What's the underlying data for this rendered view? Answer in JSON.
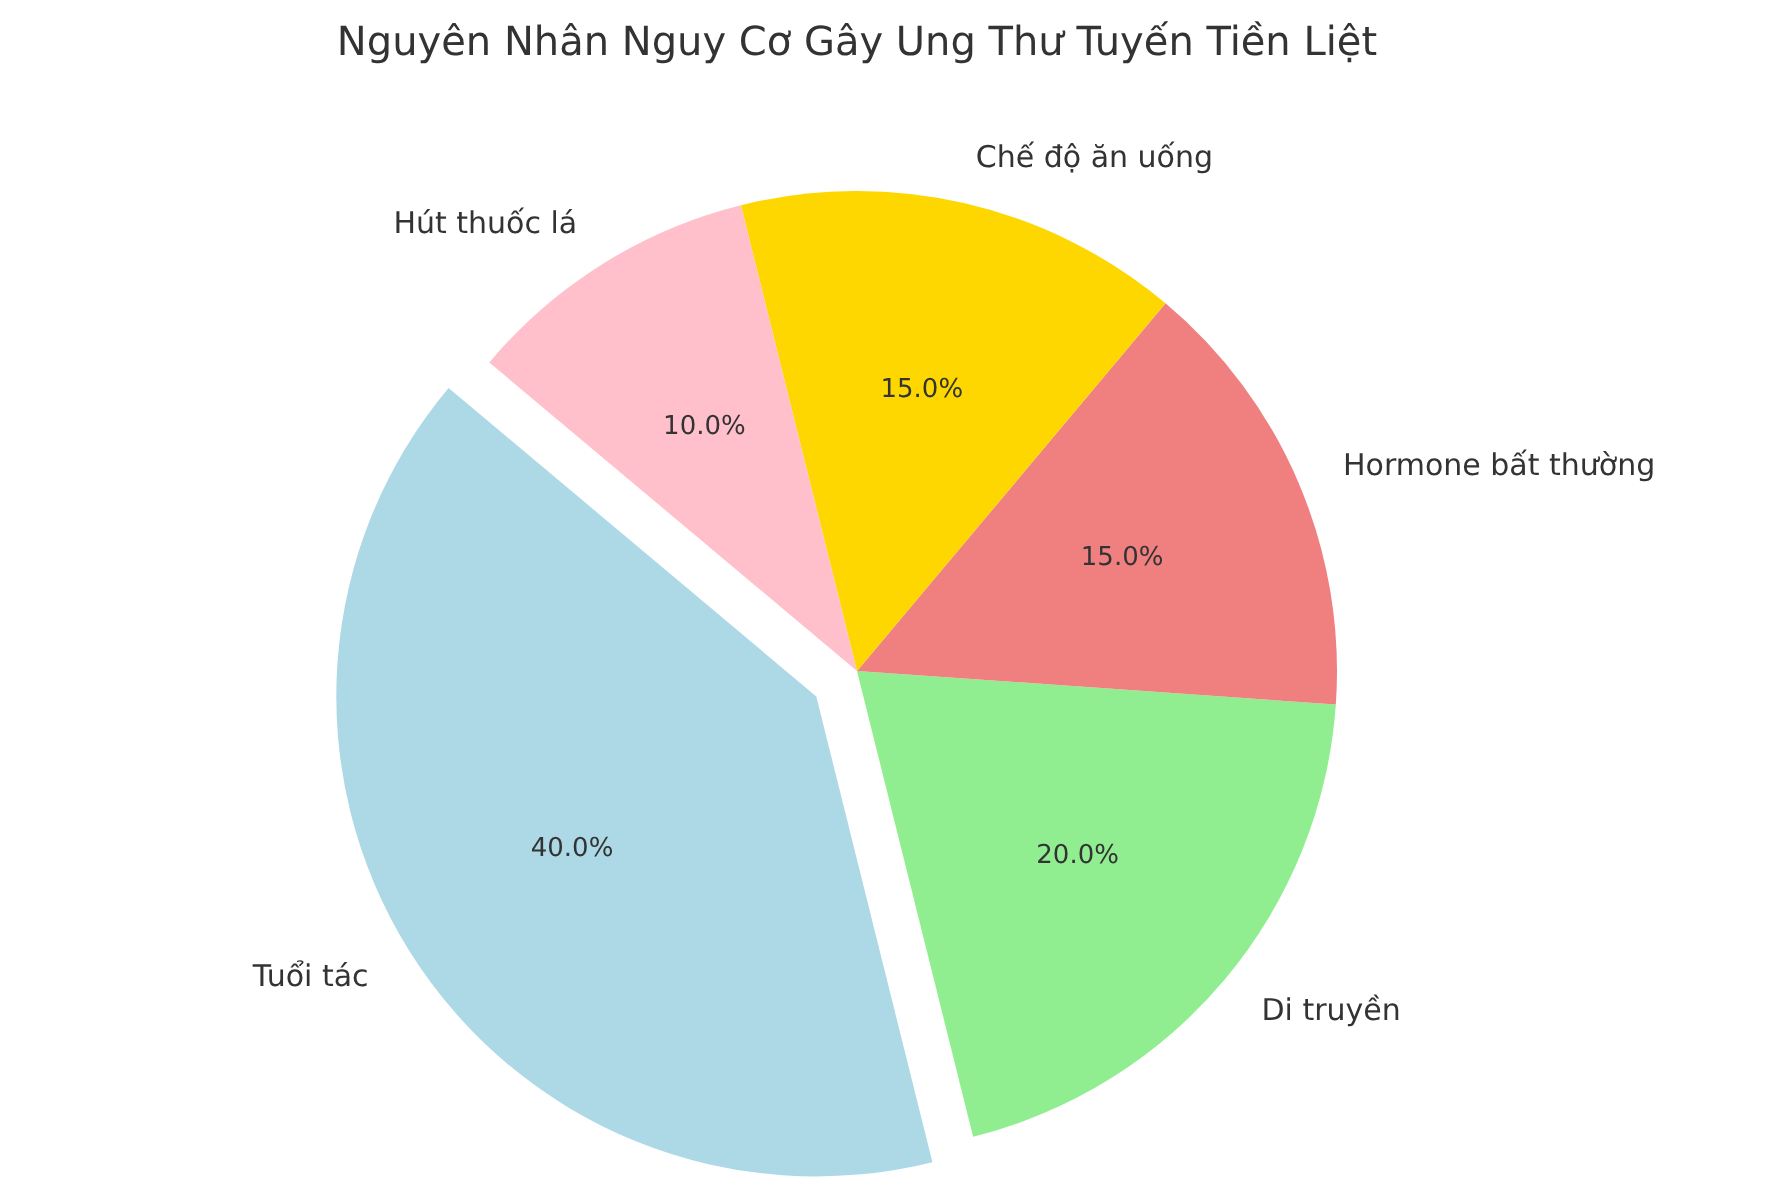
{
  "chart_data": {
    "type": "pie",
    "title": "Nguyên Nhân Nguy Cơ Gây Ung Thư Tuyến Tiền Liệt",
    "categories": [
      "Tuổi tác",
      "Di truyền",
      "Hormone bất thường",
      "Chế độ ăn uống",
      "Hút thuốc lá"
    ],
    "values": [
      40,
      20,
      15,
      15,
      10
    ],
    "colors": [
      "#add8e6",
      "#90ee90",
      "#f08080",
      "#ffd700",
      "#ffc0cb"
    ],
    "value_labels": [
      "40.0%",
      "20.0%",
      "15.0%",
      "15.0%",
      "10.0%"
    ]
  }
}
